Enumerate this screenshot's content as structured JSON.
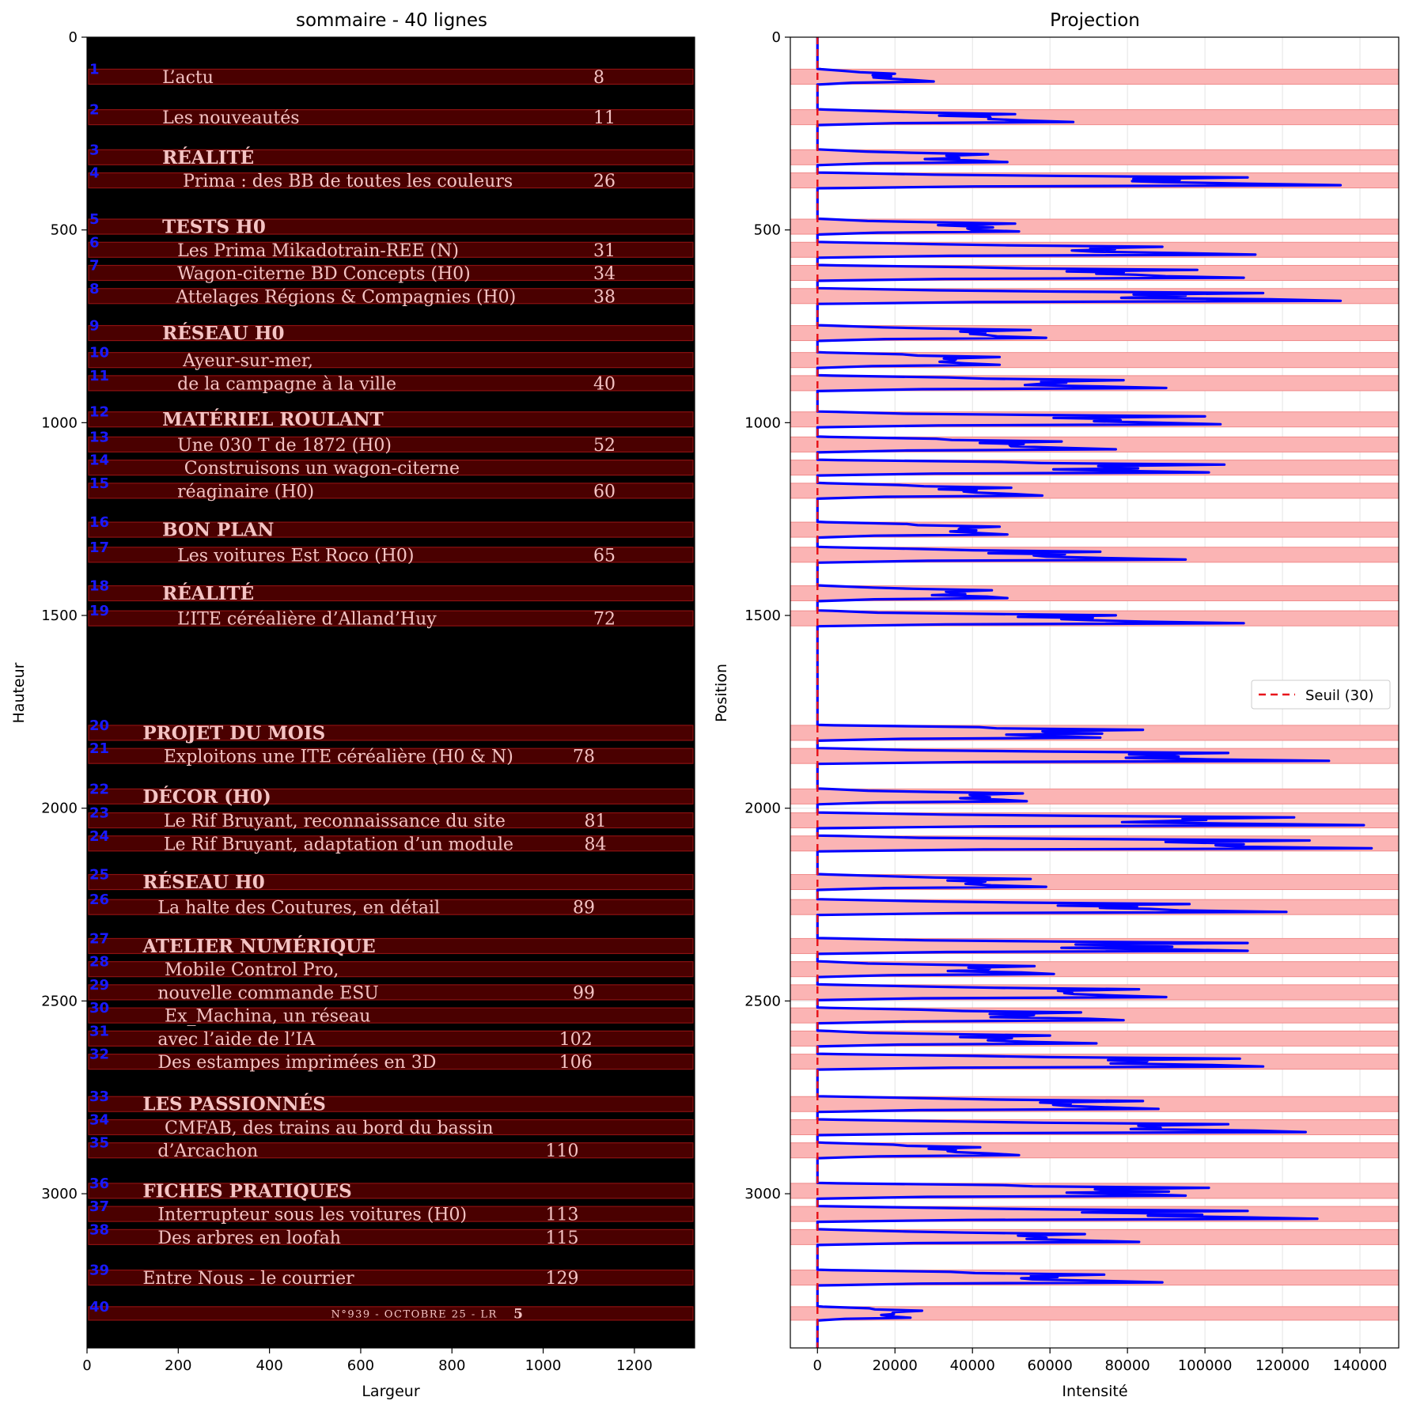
{
  "chart_data": [
    {
      "type": "image",
      "title": "sommaire - 40 lignes",
      "xlabel": "Largeur",
      "ylabel": "Hauteur",
      "xlim": [
        0,
        1332
      ],
      "ylim": [
        3400,
        0
      ],
      "xticks": [
        0,
        200,
        400,
        600,
        800,
        1000,
        1200
      ],
      "yticks": [
        0,
        500,
        1000,
        1500,
        2000,
        2500,
        3000
      ],
      "lines": [
        {
          "n": "1",
          "y0": 83,
          "y1": 122,
          "text": "L’actu",
          "tx": 165,
          "page": "8",
          "px": 1110,
          "bold": false
        },
        {
          "n": "2",
          "y0": 188,
          "y1": 227,
          "text": "Les nouveautés",
          "tx": 165,
          "page": "11",
          "px": 1110,
          "bold": false
        },
        {
          "n": "3",
          "y0": 292,
          "y1": 331,
          "text": "RÉALITÉ",
          "tx": 165,
          "page": "",
          "px": 1110,
          "bold": true
        },
        {
          "n": "4",
          "y0": 352,
          "y1": 391,
          "text": "Prima : des BB de toutes les couleurs",
          "tx": 210,
          "page": "26",
          "px": 1110,
          "bold": false
        },
        {
          "n": "5",
          "y0": 472,
          "y1": 511,
          "text": "TESTS H0",
          "tx": 165,
          "page": "",
          "px": 1110,
          "bold": true
        },
        {
          "n": "6",
          "y0": 532,
          "y1": 571,
          "text": "Les Prima Mikadotrain-REE (N)",
          "tx": 198,
          "page": "31",
          "px": 1110,
          "bold": false
        },
        {
          "n": "7",
          "y0": 592,
          "y1": 631,
          "text": "Wagon-citerne BD Concepts (H0)",
          "tx": 198,
          "page": "34",
          "px": 1110,
          "bold": false
        },
        {
          "n": "8",
          "y0": 652,
          "y1": 691,
          "text": "Attelages Régions & Compagnies (H0)",
          "tx": 195,
          "page": "38",
          "px": 1110,
          "bold": false
        },
        {
          "n": "9",
          "y0": 748,
          "y1": 787,
          "text": "RÉSEAU H0",
          "tx": 165,
          "page": "",
          "px": 1110,
          "bold": true
        },
        {
          "n": "10",
          "y0": 818,
          "y1": 857,
          "text": "Ayeur-sur-mer,",
          "tx": 210,
          "page": "",
          "px": 1110,
          "bold": false
        },
        {
          "n": "11",
          "y0": 878,
          "y1": 917,
          "text": "de la campagne à la ville",
          "tx": 198,
          "page": "40",
          "px": 1110,
          "bold": false
        },
        {
          "n": "12",
          "y0": 972,
          "y1": 1011,
          "text": "MATÉRIEL ROULANT",
          "tx": 165,
          "page": "",
          "px": 1110,
          "bold": true
        },
        {
          "n": "13",
          "y0": 1037,
          "y1": 1076,
          "text": "Une 030 T de 1872 (H0)",
          "tx": 198,
          "page": "52",
          "px": 1110,
          "bold": false
        },
        {
          "n": "14",
          "y0": 1097,
          "y1": 1136,
          "text": "Construisons un wagon-citerne",
          "tx": 213,
          "page": "",
          "px": 1110,
          "bold": false
        },
        {
          "n": "15",
          "y0": 1157,
          "y1": 1196,
          "text": "réaginaire (H0)",
          "tx": 198,
          "page": "60",
          "px": 1110,
          "bold": false
        },
        {
          "n": "16",
          "y0": 1258,
          "y1": 1297,
          "text": "BON PLAN",
          "tx": 165,
          "page": "",
          "px": 1110,
          "bold": true
        },
        {
          "n": "17",
          "y0": 1323,
          "y1": 1362,
          "text": "Les voitures Est Roco (H0)",
          "tx": 198,
          "page": "65",
          "px": 1110,
          "bold": false
        },
        {
          "n": "18",
          "y0": 1423,
          "y1": 1462,
          "text": "RÉALITÉ",
          "tx": 165,
          "page": "",
          "px": 1110,
          "bold": true
        },
        {
          "n": "19",
          "y0": 1488,
          "y1": 1527,
          "text": "L’ITE céréalière d’Alland’Huy",
          "tx": 198,
          "page": "72",
          "px": 1110,
          "bold": false
        },
        {
          "n": "20",
          "y0": 1785,
          "y1": 1824,
          "text": "PROJET DU MOIS",
          "tx": 122,
          "page": "",
          "px": 1065,
          "bold": true
        },
        {
          "n": "21",
          "y0": 1845,
          "y1": 1884,
          "text": "Exploitons une ITE céréalière (H0 & N)",
          "tx": 168,
          "page": "78",
          "px": 1065,
          "bold": false
        },
        {
          "n": "22",
          "y0": 1950,
          "y1": 1989,
          "text": "DÉCOR (H0)",
          "tx": 122,
          "page": "",
          "px": 1065,
          "bold": true
        },
        {
          "n": "23",
          "y0": 2012,
          "y1": 2051,
          "text": "Le Rif Bruyant, reconnaissance du site",
          "tx": 168,
          "page": "81",
          "px": 1090,
          "bold": false
        },
        {
          "n": "24",
          "y0": 2072,
          "y1": 2111,
          "text": "Le Rif Bruyant, adaptation d’un module",
          "tx": 168,
          "page": "84",
          "px": 1090,
          "bold": false
        },
        {
          "n": "25",
          "y0": 2172,
          "y1": 2211,
          "text": "RÉSEAU H0",
          "tx": 122,
          "page": "",
          "px": 1065,
          "bold": true
        },
        {
          "n": "26",
          "y0": 2237,
          "y1": 2276,
          "text": "La halte des Coutures, en détail",
          "tx": 155,
          "page": "89",
          "px": 1065,
          "bold": false
        },
        {
          "n": "27",
          "y0": 2338,
          "y1": 2377,
          "text": "ATELIER NUMÉRIQUE",
          "tx": 122,
          "page": "",
          "px": 1065,
          "bold": true
        },
        {
          "n": "28",
          "y0": 2398,
          "y1": 2437,
          "text": "Mobile Control Pro,",
          "tx": 170,
          "page": "",
          "px": 1065,
          "bold": false
        },
        {
          "n": "29",
          "y0": 2458,
          "y1": 2497,
          "text": "nouvelle commande ESU",
          "tx": 155,
          "page": "99",
          "px": 1065,
          "bold": false
        },
        {
          "n": "30",
          "y0": 2518,
          "y1": 2557,
          "text": "Ex_Machina, un réseau",
          "tx": 170,
          "page": "",
          "px": 1065,
          "bold": false
        },
        {
          "n": "31",
          "y0": 2578,
          "y1": 2617,
          "text": "avec l’aide de l’IA",
          "tx": 155,
          "page": "102",
          "px": 1035,
          "bold": false
        },
        {
          "n": "32",
          "y0": 2638,
          "y1": 2677,
          "text": "Des estampes imprimées en 3D",
          "tx": 155,
          "page": "106",
          "px": 1035,
          "bold": false
        },
        {
          "n": "33",
          "y0": 2748,
          "y1": 2787,
          "text": "LES PASSIONNÉS",
          "tx": 122,
          "page": "",
          "px": 1065,
          "bold": true
        },
        {
          "n": "34",
          "y0": 2808,
          "y1": 2847,
          "text": "CMFAB, des trains au bord du bassin",
          "tx": 170,
          "page": "",
          "px": 1065,
          "bold": false
        },
        {
          "n": "35",
          "y0": 2868,
          "y1": 2907,
          "text": "d’Arcachon",
          "tx": 155,
          "page": "110",
          "px": 1005,
          "bold": false
        },
        {
          "n": "36",
          "y0": 2973,
          "y1": 3012,
          "text": "FICHES PRATIQUES",
          "tx": 122,
          "page": "",
          "px": 1065,
          "bold": true
        },
        {
          "n": "37",
          "y0": 3033,
          "y1": 3072,
          "text": "Interrupteur sous les voitures (H0)",
          "tx": 155,
          "page": "113",
          "px": 1005,
          "bold": false
        },
        {
          "n": "38",
          "y0": 3093,
          "y1": 3132,
          "text": "Des arbres en loofah",
          "tx": 155,
          "page": "115",
          "px": 1005,
          "bold": false
        },
        {
          "n": "39",
          "y0": 3198,
          "y1": 3237,
          "text": "Entre Nous - le courrier",
          "tx": 122,
          "page": "129",
          "px": 1005,
          "bold": false
        },
        {
          "n": "40",
          "y0": 3293,
          "y1": 3328,
          "text": "N°939 - OCTOBRE 25 - LR",
          "tx": 535,
          "page": "5",
          "px": 935,
          "bold": false,
          "small": true
        }
      ]
    },
    {
      "type": "line",
      "title": "Projection",
      "xlabel": "Intensité",
      "ylabel": "Position",
      "xlim": [
        -7000,
        150000
      ],
      "ylim": [
        3400,
        0
      ],
      "xticks": [
        0,
        20000,
        40000,
        60000,
        80000,
        100000,
        120000,
        140000
      ],
      "yticks": [
        0,
        500,
        1000,
        1500,
        2000,
        2500,
        3000
      ],
      "grid": true,
      "threshold": {
        "value": 0,
        "label": "Seuil (30)"
      },
      "legend": "center-right",
      "series": [
        {
          "name": "",
          "peaks": [
            [
              83,
              122,
              20000,
              30000
            ],
            [
              188,
              227,
              51000,
              66000
            ],
            [
              292,
              331,
              44000,
              49000
            ],
            [
              352,
              391,
              111000,
              135000
            ],
            [
              472,
              511,
              51000,
              52000
            ],
            [
              532,
              571,
              89000,
              113000
            ],
            [
              592,
              631,
              98000,
              110000
            ],
            [
              652,
              691,
              115000,
              135000
            ],
            [
              748,
              787,
              55000,
              59000
            ],
            [
              818,
              857,
              47000,
              47000
            ],
            [
              878,
              917,
              79000,
              90000
            ],
            [
              972,
              1011,
              100000,
              104000
            ],
            [
              1037,
              1076,
              63000,
              77000
            ],
            [
              1097,
              1136,
              105000,
              101000
            ],
            [
              1157,
              1196,
              50000,
              58000
            ],
            [
              1258,
              1297,
              47000,
              49000
            ],
            [
              1323,
              1362,
              73000,
              95000
            ],
            [
              1423,
              1462,
              45000,
              49000
            ],
            [
              1488,
              1527,
              77000,
              110000
            ],
            [
              1785,
              1824,
              84000,
              73000
            ],
            [
              1845,
              1884,
              106000,
              132000
            ],
            [
              1950,
              1989,
              53000,
              54000
            ],
            [
              2012,
              2051,
              123000,
              141000
            ],
            [
              2072,
              2111,
              127000,
              143000
            ],
            [
              2172,
              2211,
              55000,
              59000
            ],
            [
              2237,
              2276,
              96000,
              121000
            ],
            [
              2338,
              2377,
              111000,
              111000
            ],
            [
              2398,
              2437,
              56000,
              61000
            ],
            [
              2458,
              2497,
              83000,
              90000
            ],
            [
              2518,
              2557,
              68000,
              79000
            ],
            [
              2578,
              2617,
              60000,
              72000
            ],
            [
              2638,
              2677,
              109000,
              115000
            ],
            [
              2748,
              2787,
              84000,
              88000
            ],
            [
              2808,
              2847,
              106000,
              126000
            ],
            [
              2868,
              2907,
              42000,
              52000
            ],
            [
              2973,
              3012,
              101000,
              95000
            ],
            [
              3033,
              3072,
              111000,
              129000
            ],
            [
              3093,
              3132,
              69000,
              83000
            ],
            [
              3198,
              3237,
              74000,
              89000
            ],
            [
              3293,
              3328,
              27000,
              24000
            ]
          ]
        }
      ]
    }
  ]
}
